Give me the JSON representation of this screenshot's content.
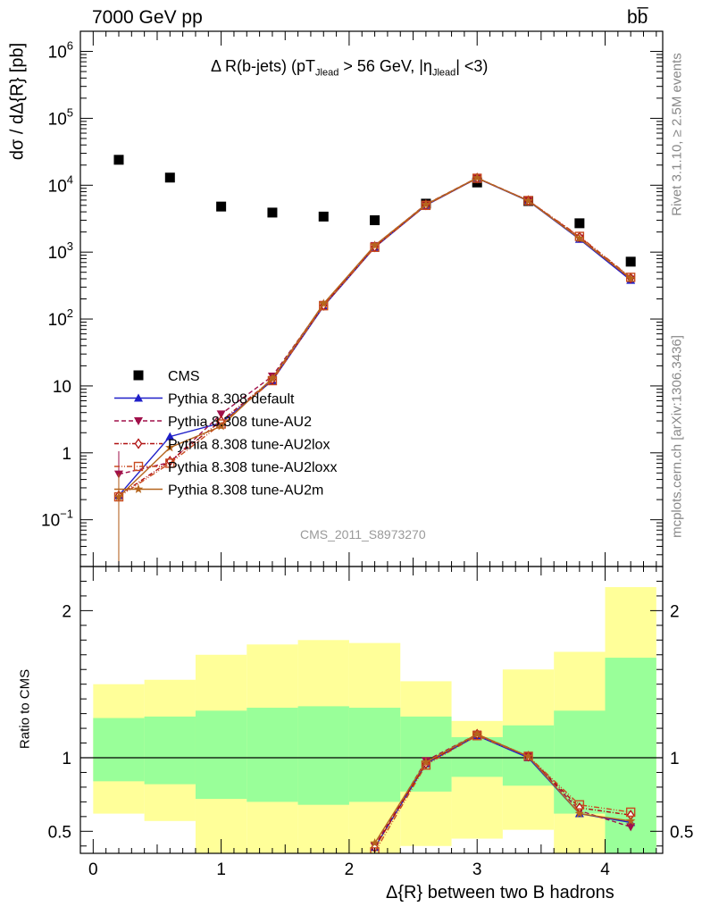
{
  "header": {
    "energy_label": "7000 GeV pp",
    "process_label": "bb̅"
  },
  "side_labels": {
    "rivet": "Rivet 3.1.10, ≥ 2.5M events",
    "mcplots": "mcplots.cern.ch [arXiv:1306.3436]"
  },
  "analysis_tag": "CMS_2011_S8973270",
  "chart_data": [
    {
      "type": "scatter",
      "panel": "main",
      "title": "Δ R(b-jets) (pT_Jlead > 56 GeV, |η_Jlead| <3)",
      "title_parts": {
        "a": "Δ R(b-jets) (pT",
        "a_sub": "Jlead",
        "b": " >  56 GeV, |η",
        "b_sub": "Jlead",
        "c": "| <3)"
      },
      "ylabel": "dσ / dΔ{R} [pb]",
      "yscale": "log",
      "ylim": [
        0.02,
        2000000
      ],
      "xlim": [
        -0.1,
        4.45
      ],
      "ytick_labels": [
        {
          "v": 0.1,
          "base": "10",
          "exp": "−1"
        },
        {
          "v": 1,
          "text": "1"
        },
        {
          "v": 10,
          "text": "10"
        },
        {
          "v": 100,
          "base": "10",
          "exp": "2"
        },
        {
          "v": 1000,
          "base": "10",
          "exp": "3"
        },
        {
          "v": 10000,
          "base": "10",
          "exp": "4"
        },
        {
          "v": 100000,
          "base": "10",
          "exp": "5"
        },
        {
          "v": 1000000,
          "base": "10",
          "exp": "6"
        }
      ],
      "x": [
        0.2,
        0.6,
        1.0,
        1.4,
        1.8,
        2.2,
        2.6,
        3.0,
        3.4,
        3.8,
        4.2
      ],
      "series": [
        {
          "name": "CMS",
          "color": "#000000",
          "marker": "square",
          "values": [
            24000,
            13000,
            4800,
            3900,
            3400,
            3000,
            5300,
            11000,
            5800,
            2700,
            720
          ]
        },
        {
          "name": "Pythia 8.308 default",
          "color": "#1f1fc8",
          "marker": "triangle-up",
          "dash": "",
          "values": [
            0.23,
            1.75,
            2.8,
            12,
            155,
            1180,
            5000,
            12700,
            5800,
            1560,
            380
          ]
        },
        {
          "name": "Pythia 8.308 tune-AU2",
          "color": "#a0104a",
          "marker": "triangle-down",
          "dash": "5,3",
          "values": [
            0.48,
            0.72,
            3.8,
            14,
            165,
            1250,
            5200,
            12900,
            5900,
            1620,
            395
          ]
        },
        {
          "name": "Pythia 8.308 tune-AU2lox",
          "color": "#b01010",
          "marker": "diamond-open",
          "dash": "5,2,1,2",
          "values": [
            0.23,
            0.75,
            3.0,
            12.5,
            160,
            1200,
            5100,
            12800,
            5900,
            1680,
            410
          ]
        },
        {
          "name": "Pythia 8.308 tune-AU2loxx",
          "color": "#c84a20",
          "marker": "square-open",
          "dash": "6,2,1,2,1,2",
          "values": [
            0.22,
            0.7,
            2.7,
            12,
            158,
            1180,
            5000,
            12700,
            5900,
            1720,
            420
          ]
        },
        {
          "name": "Pythia 8.308 tune-AU2m",
          "color": "#b5651d",
          "marker": "star",
          "dash": "",
          "values": [
            0.22,
            1.2,
            2.5,
            13,
            170,
            1260,
            5150,
            12900,
            5850,
            1600,
            405
          ]
        }
      ]
    },
    {
      "type": "line",
      "panel": "ratio",
      "ylabel": "Ratio to CMS",
      "xlabel": "Δ{R} between two B hadrons",
      "ylim": [
        0.35,
        2.3
      ],
      "xlim": [
        -0.1,
        4.45
      ],
      "x_ticks": [
        0,
        1,
        2,
        3,
        4
      ],
      "y_ticks": [
        0.5,
        1,
        2
      ],
      "band_edges": [
        0,
        0.4,
        0.8,
        1.2,
        1.6,
        2.0,
        2.4,
        2.8,
        3.2,
        3.6,
        4.0,
        4.4
      ],
      "band_inner": [
        [
          0.84,
          1.27
        ],
        [
          0.82,
          1.28
        ],
        [
          0.72,
          1.32
        ],
        [
          0.7,
          1.34
        ],
        [
          0.68,
          1.35
        ],
        [
          0.7,
          1.34
        ],
        [
          0.77,
          1.28
        ],
        [
          0.87,
          1.14
        ],
        [
          0.81,
          1.22
        ],
        [
          0.62,
          1.32
        ],
        [
          0.35,
          1.68
        ]
      ],
      "band_outer": [
        [
          0.62,
          1.5
        ],
        [
          0.57,
          1.53
        ],
        [
          0.35,
          1.7
        ],
        [
          0.35,
          1.77
        ],
        [
          0.35,
          1.8
        ],
        [
          0.35,
          1.78
        ],
        [
          0.4,
          1.52
        ],
        [
          0.45,
          1.25
        ],
        [
          0.51,
          1.6
        ],
        [
          0.35,
          1.72
        ],
        [
          0.35,
          2.16
        ]
      ],
      "x": [
        2.2,
        2.6,
        3.0,
        3.4,
        3.8,
        4.2
      ],
      "series": [
        {
          "name": "Pythia 8.308 default",
          "color": "#1f1fc8",
          "dash": "",
          "values": [
            0.39,
            0.96,
            1.15,
            1.0,
            0.62,
            0.56
          ]
        },
        {
          "name": "Pythia 8.308 tune-AU2",
          "color": "#a0104a",
          "dash": "5,3",
          "values": [
            0.4,
            0.98,
            1.16,
            1.01,
            0.64,
            0.53
          ]
        },
        {
          "name": "Pythia 8.308 tune-AU2lox",
          "color": "#b01010",
          "dash": "5,2,1,2",
          "values": [
            0.39,
            0.96,
            1.16,
            1.01,
            0.66,
            0.61
          ]
        },
        {
          "name": "Pythia 8.308 tune-AU2loxx",
          "color": "#c84a20",
          "dash": "6,2,1,2,1,2",
          "values": [
            0.36,
            0.95,
            1.15,
            1.01,
            0.68,
            0.63
          ]
        },
        {
          "name": "Pythia 8.308 tune-AU2m",
          "color": "#b5651d",
          "dash": "",
          "values": [
            0.42,
            0.97,
            1.16,
            1.01,
            0.62,
            0.57
          ]
        }
      ]
    }
  ],
  "colors": {
    "band_inner": "#99ff99",
    "band_outer": "#ffff99"
  }
}
